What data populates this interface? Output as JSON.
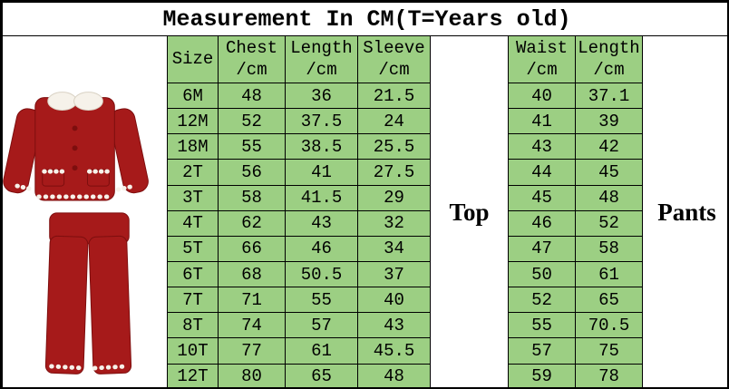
{
  "title": "Measurement In CM(T=Years old)",
  "labels": {
    "top": "Top",
    "pants": "Pants"
  },
  "headers": [
    {
      "line1": "Size",
      "line2": ""
    },
    {
      "line1": "Chest",
      "line2": "/cm"
    },
    {
      "line1": "Length",
      "line2": "/cm"
    },
    {
      "line1": "Sleeve",
      "line2": "/cm"
    },
    {
      "line1": "Waist",
      "line2": "/cm"
    },
    {
      "line1": "Length",
      "line2": "/cm"
    }
  ],
  "image": {
    "name": "red-pajama-set-photo",
    "alt": "Red velvet pajama set with white lace trim"
  },
  "colors": {
    "cell_green": "#9ccf83",
    "border_black": "#000000",
    "pajama_red": "#a61a1a",
    "lace_white": "#f6f2ea"
  },
  "chart_data": {
    "type": "table",
    "title": "Measurement In CM(T=Years old)",
    "unit": "cm",
    "columns": [
      "Size",
      "Chest /cm",
      "Length /cm",
      "Sleeve /cm",
      "Top",
      "Waist /cm",
      "Length /cm",
      "Pants"
    ],
    "column_groups": {
      "Top": [
        "Chest /cm",
        "Length /cm",
        "Sleeve /cm"
      ],
      "Pants": [
        "Waist /cm",
        "Length /cm"
      ]
    },
    "rows": [
      {
        "size": "6M",
        "chest": "48",
        "length": "36",
        "sleeve": "21.5",
        "waist": "40",
        "pant_length": "37.1"
      },
      {
        "size": "12M",
        "chest": "52",
        "length": "37.5",
        "sleeve": "24",
        "waist": "41",
        "pant_length": "39"
      },
      {
        "size": "18M",
        "chest": "55",
        "length": "38.5",
        "sleeve": "25.5",
        "waist": "43",
        "pant_length": "42"
      },
      {
        "size": "2T",
        "chest": "56",
        "length": "41",
        "sleeve": "27.5",
        "waist": "44",
        "pant_length": "45"
      },
      {
        "size": "3T",
        "chest": "58",
        "length": "41.5",
        "sleeve": "29",
        "waist": "45",
        "pant_length": "48"
      },
      {
        "size": "4T",
        "chest": "62",
        "length": "43",
        "sleeve": "32",
        "waist": "46",
        "pant_length": "52"
      },
      {
        "size": "5T",
        "chest": "66",
        "length": "46",
        "sleeve": "34",
        "waist": "47",
        "pant_length": "58"
      },
      {
        "size": "6T",
        "chest": "68",
        "length": "50.5",
        "sleeve": "37",
        "waist": "50",
        "pant_length": "61"
      },
      {
        "size": "7T",
        "chest": "71",
        "length": "55",
        "sleeve": "40",
        "waist": "52",
        "pant_length": "65"
      },
      {
        "size": "8T",
        "chest": "74",
        "length": "57",
        "sleeve": "43",
        "waist": "55",
        "pant_length": "70.5"
      },
      {
        "size": "10T",
        "chest": "77",
        "length": "61",
        "sleeve": "45.5",
        "waist": "57",
        "pant_length": "75"
      },
      {
        "size": "12T",
        "chest": "80",
        "length": "65",
        "sleeve": "48",
        "waist": "59",
        "pant_length": "78"
      }
    ]
  }
}
